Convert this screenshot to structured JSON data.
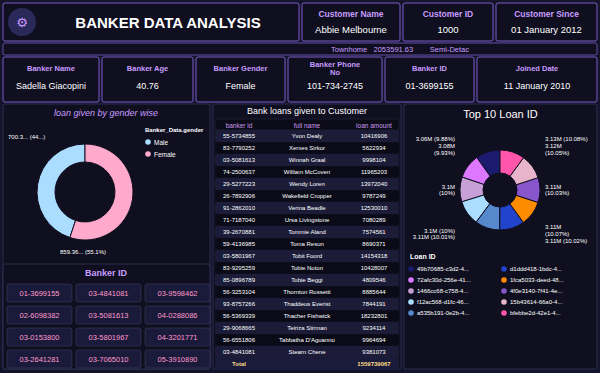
{
  "chart_data": [
    {
      "type": "header",
      "title": "BANKER DATA ANALYSIS",
      "icon": "⚙",
      "fields": [
        {
          "label": "Customer Name",
          "value": "Abbie Melbourne"
        },
        {
          "label": "Customer ID",
          "value": "1000"
        },
        {
          "label": "Customer Since",
          "value": "01 January 2012"
        }
      ],
      "subtitle": "Townhome   2053591.63        Semi-Detac",
      "details": [
        {
          "label": "Banker Name",
          "value": "Sadella Giacopini"
        },
        {
          "label": "Banker Age",
          "value": "40.76"
        },
        {
          "label": "Banker Gender",
          "value": "Female"
        },
        {
          "label": "Banker Phone\nNo",
          "value": "101-734-2745"
        },
        {
          "label": "Banker ID",
          "value": "01-3699155"
        },
        {
          "label": "Joined Date",
          "value": "11 January 2010"
        }
      ]
    },
    {
      "type": "donut",
      "title": "loan given by gender wise",
      "legend_title": "Banker_Data.gender",
      "legend": "right",
      "categories": [
        "Male",
        "Female"
      ],
      "values": [
        44.9,
        55.1
      ],
      "colors": [
        "#aaddff",
        "#ffaacc"
      ],
      "value_labels": [
        "700.3... (44...)",
        "859.36... (55.1%)"
      ]
    },
    {
      "type": "donut",
      "title": "Top 10 Loan ID",
      "legend_title": "Loan ID",
      "legend": "right",
      "categories": [
        "49b70685-c3d2-4...",
        "72afc30d-256e-41...",
        "1466cc68-c758-4...",
        "f12ac568-d1fc-46...",
        "a535b191-0e2b-4...",
        "d1ddd418-1bdc-4...",
        "1fca5033-deed-48...",
        "4f0e3140-7f41-4e...",
        "15b43614-66a0-4...",
        "bfebbe2d-42e1-4..."
      ],
      "values": [
        9.88,
        9.93,
        10.0,
        10.08,
        10.05,
        10.03,
        10.07,
        10.02,
        10.01,
        10.01
      ],
      "colors": [
        "#1a1a6e",
        "#dd77ff",
        "#c8a0d8",
        "#aaddff",
        "#5588cc",
        "#2244cc",
        "#ff8c00",
        "#8855cc",
        "#e8b4cb",
        "#ff55aa"
      ],
      "annotations": [
        "3.06M (9.88%)\n3.08M\n(9.93%)",
        "3.1M\n(10%)",
        "3.1M (10%)\n3.11M (10.01%)",
        "3.13M (10.08%)\n3.12M\n(10.05%)",
        "3.11M\n(10.03%)",
        "3.11M\n(10.07%)\n3.11M (10.02%)"
      ]
    },
    {
      "type": "table",
      "title": "Bank loans given to Customer",
      "columns": [
        "banker id",
        "full name",
        "loan amount"
      ],
      "rows": [
        [
          "55-5734855",
          "Yvon Dealy",
          "10416906"
        ],
        [
          "83-7790252",
          "Xerxes Sirkor",
          "5622934"
        ],
        [
          "03-5081613",
          "Winnah Graal",
          "9998104"
        ],
        [
          "74-2500637",
          "William McCoven",
          "11965203"
        ],
        [
          "29-5277223",
          "Wendy Loren",
          "13972040"
        ],
        [
          "26-7892906",
          "Wakefield Cropper",
          "9787249"
        ],
        [
          "91-2862010",
          "Verina Beadle",
          "12530010"
        ],
        [
          "71-7187040",
          "Ursa Livingstone",
          "7080289"
        ],
        [
          "39-2670881",
          "Tommie Aland",
          "7574561"
        ],
        [
          "59-4136985",
          "Toma Resun",
          "8690371"
        ],
        [
          "03-5801967",
          "Tobit Foord",
          "14154318"
        ],
        [
          "83-9295259",
          "Tobie Noton",
          "10428007"
        ],
        [
          "85-0896789",
          "Tobie Beggi",
          "4809546"
        ],
        [
          "56-3253104",
          "Thornton Rossetti",
          "8885644"
        ],
        [
          "93-8757266",
          "Thaddeus Everist",
          "7844191"
        ],
        [
          "56-5369339",
          "Thacher Fishwick",
          "18232801"
        ],
        [
          "29-9068665",
          "Teiriza Stirman",
          "9234114"
        ],
        [
          "56-6551806",
          "Tabbatha D'Aguanno",
          "9964694"
        ],
        [
          "03-4841081",
          "Stearn Chene",
          "9381073"
        ],
        [
          "Total",
          "",
          "1559739067"
        ]
      ]
    },
    {
      "type": "table",
      "title": "Banker ID",
      "rows": [
        [
          "01-3699155",
          "03-4841081",
          "03-9598462"
        ],
        [
          "02-6098382",
          "03-5081613",
          "04-0288086"
        ],
        [
          "03-0153800",
          "03-5801967",
          "04-3201771"
        ],
        [
          "03-2641281",
          "03-7065010",
          "05-3910890"
        ]
      ]
    }
  ]
}
